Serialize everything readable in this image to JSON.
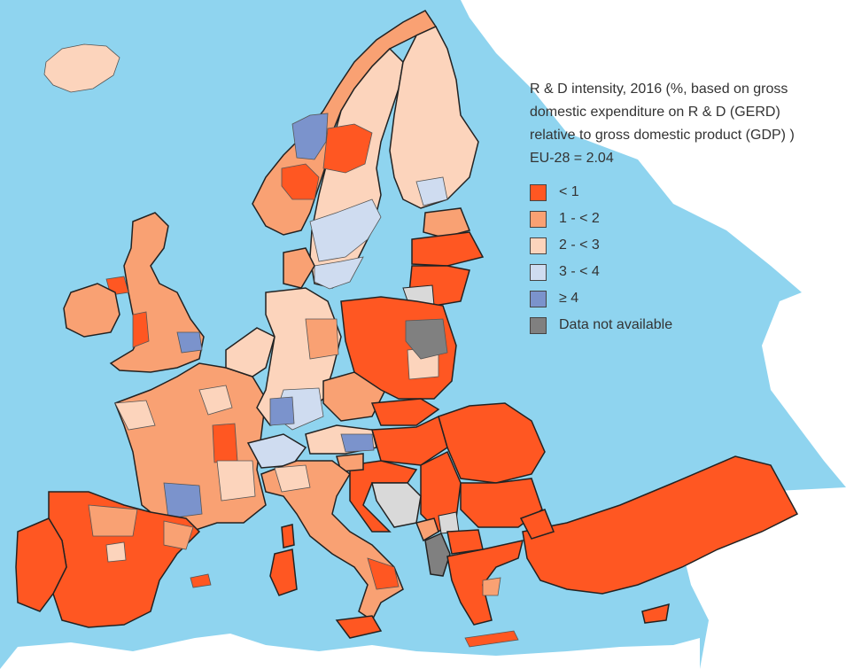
{
  "title": "R & D intensity, 2016 (%, based on gross\ndomestic expenditure on R & D (GERD)\nrelative to gross domestic product (GDP) )",
  "eu_average": "EU-28 = 2.04",
  "colors": {
    "sea": "#8fd4ef",
    "non_covered_land": "#ffffff",
    "no_data": "#808080",
    "non_eu_grey": "#d9d9d9",
    "border_national": "#222222",
    "border_regional": "#555555"
  },
  "legend": [
    {
      "label": "< 1",
      "color": "#ff5722"
    },
    {
      "label": "1 - < 2",
      "color": "#f9a173"
    },
    {
      "label": "2 - < 3",
      "color": "#fcd4bc"
    },
    {
      "label": "3 - < 4",
      "color": "#cfdcf0"
    },
    {
      "label": "≥ 4",
      "color": "#7b93cc"
    },
    {
      "label": "Data not available",
      "color": "#808080"
    }
  ],
  "map_regions": [
    {
      "name": "iberia",
      "class": "< 1"
    },
    {
      "name": "central-spain",
      "class": "1 - < 2"
    },
    {
      "name": "france",
      "class": "1 - < 2"
    },
    {
      "name": "paris-region",
      "class": "2 - < 3"
    },
    {
      "name": "uk",
      "class": "1 - < 2"
    },
    {
      "name": "ireland",
      "class": "1 - < 2"
    },
    {
      "name": "scandinavia-west",
      "class": "1 - < 2"
    },
    {
      "name": "sweden",
      "class": "3 - < 4"
    },
    {
      "name": "finland",
      "class": "2 - < 3"
    },
    {
      "name": "germany",
      "class": "2 - < 3"
    },
    {
      "name": "bavaria-bw",
      "class": "3 - < 4"
    },
    {
      "name": "poland-baltics",
      "class": "< 1"
    },
    {
      "name": "balkans-romania",
      "class": "< 1"
    },
    {
      "name": "italy",
      "class": "1 - < 2"
    },
    {
      "name": "turkey",
      "class": "< 1"
    },
    {
      "name": "bosnia",
      "class": "non-EU"
    },
    {
      "name": "albania",
      "class": "Data not available"
    }
  ]
}
